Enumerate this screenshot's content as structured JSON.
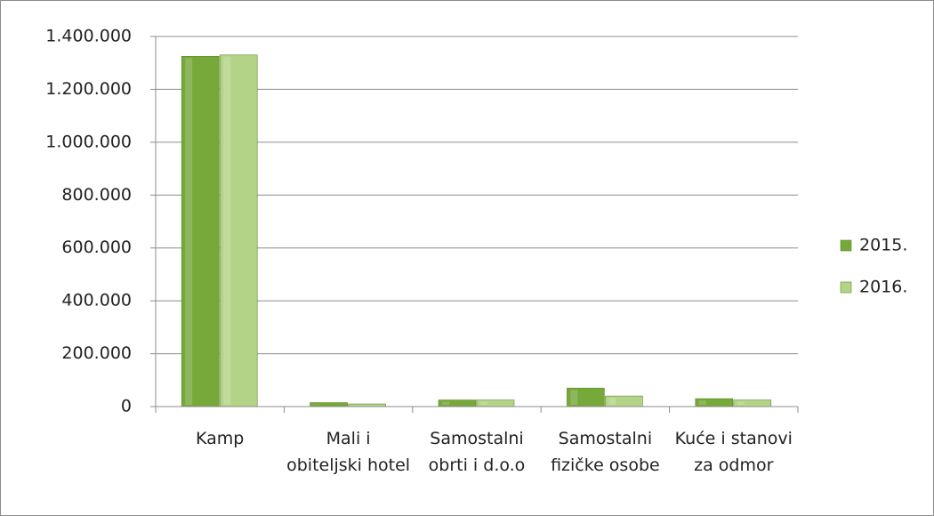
{
  "chart_data": {
    "type": "bar",
    "categories": [
      "Kamp",
      "Mali i obiteljski hotel",
      "Samostalni obrti i d.o.o",
      "Samostalni fizičke osobe",
      "Kuće i stanovi za odmor"
    ],
    "series": [
      {
        "name": "2015.",
        "color": "#76a83a",
        "values": [
          1325000,
          15000,
          25000,
          70000,
          30000
        ]
      },
      {
        "name": "2016.",
        "color": "#b3d487",
        "values": [
          1330000,
          10000,
          25000,
          40000,
          25000
        ]
      }
    ],
    "ylim": [
      0,
      1400000
    ],
    "yticks": [
      0,
      {
        "value": 200000,
        "label": "200.000"
      },
      {
        "value": 400000,
        "label": "400.000"
      },
      {
        "value": 600000,
        "label": "600.000"
      },
      {
        "value": 800000,
        "label": "800.000"
      },
      {
        "value": 1000000,
        "label": "1.000.000"
      },
      {
        "value": 1200000,
        "label": "1.200.000"
      },
      {
        "value": 1400000,
        "label": "1.400.000"
      }
    ],
    "grid": true,
    "legend": "right"
  }
}
